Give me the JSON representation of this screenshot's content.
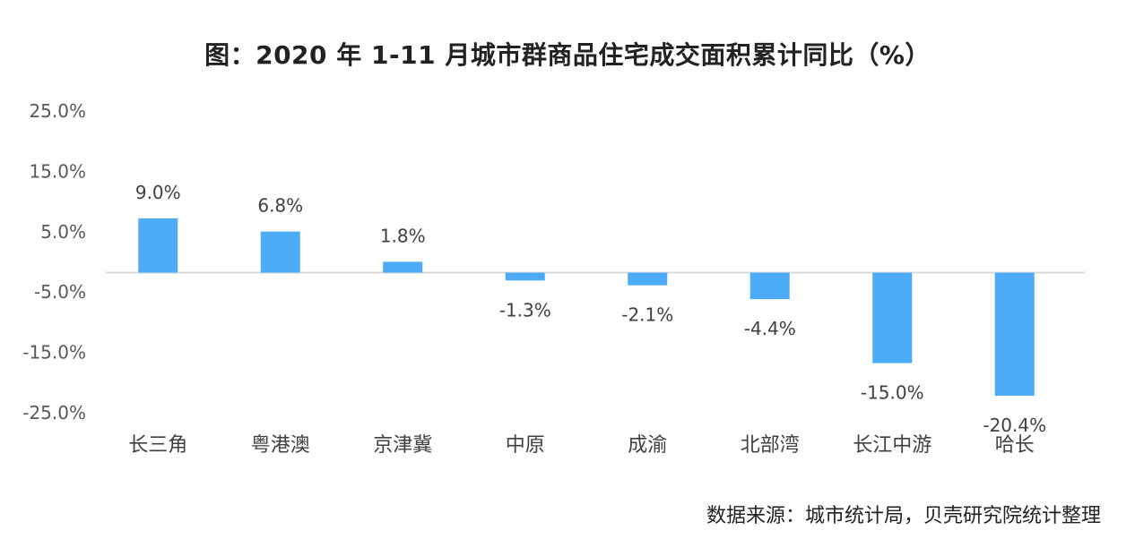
{
  "chart_data": {
    "type": "bar",
    "title": "图：2020 年 1-11 月城市群商品住宅成交面积累计同比（%）",
    "categories": [
      "长三角",
      "粤港澳",
      "京津冀",
      "中原",
      "成渝",
      "北部湾",
      "长江中游",
      "哈长"
    ],
    "values": [
      9.0,
      6.8,
      1.8,
      -1.3,
      -2.1,
      -4.4,
      -15.0,
      -20.4
    ],
    "data_labels": [
      "9.0%",
      "6.8%",
      "1.8%",
      "-1.3%",
      "-2.1%",
      "-4.4%",
      "-15.0%",
      "-20.4%"
    ],
    "y_ticks": [
      25,
      15,
      5,
      -5,
      -15,
      -25
    ],
    "y_tick_labels": [
      "25.0%",
      "15.0%",
      "5.0%",
      "-5.0%",
      "-15.0%",
      "-25.0%"
    ],
    "ylim": [
      -25,
      25
    ],
    "xlabel": "",
    "ylabel": "",
    "grid": false,
    "legend": "none",
    "bar_color": "#4DABF7",
    "axis_color": "#D9D9D9"
  },
  "source_note": "数据来源：城市统计局，贝壳研究院统计整理"
}
